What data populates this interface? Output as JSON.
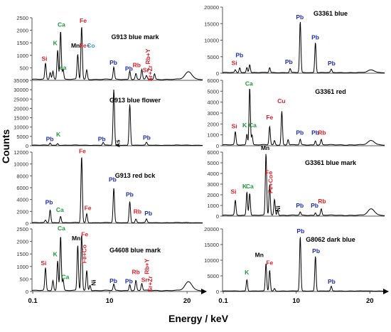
{
  "labels": {
    "y_axis": "Counts",
    "x_axis": "Energy / keV"
  },
  "colors": {
    "red": "#e0202a",
    "green": "#1e9a3a",
    "blue": "#1f2fb0",
    "cyan": "#1aa0d8",
    "black": "#000000",
    "line": "#000000",
    "axis": "#555555"
  },
  "chart_data": [
    {
      "type": "line",
      "title": "G913  blue mark",
      "ylim": [
        0,
        2500
      ],
      "yticks": [
        "0",
        "500",
        "1000",
        "1500",
        "2000",
        "2500"
      ],
      "xlim": [
        0,
        22
      ],
      "xticks": [],
      "series": [
        {
          "baseline": 40,
          "peaks": [
            {
              "x": 1.74,
              "y": 640
            },
            {
              "x": 2.35,
              "y": 280
            },
            {
              "x": 2.7,
              "y": 330
            },
            {
              "x": 3.31,
              "y": 1180
            },
            {
              "x": 3.69,
              "y": 1950
            },
            {
              "x": 4.01,
              "y": 400
            },
            {
              "x": 5.9,
              "y": 1000
            },
            {
              "x": 6.4,
              "y": 2120
            },
            {
              "x": 7.06,
              "y": 380
            },
            {
              "x": 10.55,
              "y": 480
            },
            {
              "x": 12.61,
              "y": 350
            },
            {
              "x": 13.4,
              "y": 230
            },
            {
              "x": 14.16,
              "y": 400
            },
            {
              "x": 14.76,
              "y": 140
            },
            {
              "x": 15.8,
              "y": 220
            },
            {
              "x": 20.2,
              "y": 300
            }
          ]
        }
      ],
      "annotations": [
        {
          "text": "Si",
          "color": "red",
          "x": 1.6,
          "y": 780
        },
        {
          "text": "K",
          "color": "green",
          "x": 3.0,
          "y": 1400
        },
        {
          "text": "Ca",
          "color": "green",
          "x": 3.8,
          "y": 2150
        },
        {
          "text": "ca",
          "color": "green",
          "x": 4.0,
          "y": 420
        },
        {
          "text": "Mn",
          "color": "black",
          "x": 5.6,
          "y": 1300
        },
        {
          "text": "Fe",
          "color": "red",
          "x": 6.6,
          "y": 2300
        },
        {
          "text": "Fe+",
          "color": "red",
          "x": 6.8,
          "y": 1300
        },
        {
          "text": "Co",
          "color": "cyan",
          "x": 7.6,
          "y": 1300
        },
        {
          "text": "Pb",
          "color": "blue",
          "x": 10.5,
          "y": 620
        },
        {
          "text": "Rb",
          "color": "red",
          "x": 13.5,
          "y": 520
        },
        {
          "text": "Sr",
          "color": "red",
          "x": 14.7,
          "y": 330
        },
        {
          "text": "Pb",
          "color": "blue",
          "x": 12.5,
          "y": 380
        },
        {
          "text": "Rb+Y",
          "color": "red",
          "x": 15.2,
          "y": 950
        },
        {
          "text": "Sr+Zr",
          "color": "red",
          "x": 15.5,
          "y": 280
        }
      ]
    },
    {
      "type": "line",
      "title": "G913  blue flower",
      "ylim": [
        0,
        35000
      ],
      "yticks": [
        "0",
        "5000",
        "10000",
        "15000",
        "20000",
        "25000",
        "30000",
        "35000"
      ],
      "xlim": [
        0,
        22
      ],
      "xticks": [],
      "series": [
        {
          "baseline": 300,
          "peaks": [
            {
              "x": 2.34,
              "y": 1200
            },
            {
              "x": 3.31,
              "y": 900
            },
            {
              "x": 9.18,
              "y": 1500
            },
            {
              "x": 10.55,
              "y": 29000
            },
            {
              "x": 10.54,
              "y": 800
            },
            {
              "x": 12.61,
              "y": 22000
            },
            {
              "x": 14.76,
              "y": 1500
            }
          ]
        }
      ],
      "annotations": [
        {
          "text": "Pb",
          "color": "blue",
          "x": 2.3,
          "y": 2500
        },
        {
          "text": "K",
          "color": "green",
          "x": 3.4,
          "y": 5000
        },
        {
          "text": "Pb",
          "color": "blue",
          "x": 9.0,
          "y": 2500
        },
        {
          "text": "As",
          "color": "black",
          "x": 11.3,
          "y": 1200
        },
        {
          "text": "Pb",
          "color": "blue",
          "x": 14.8,
          "y": 3300
        }
      ]
    },
    {
      "type": "line",
      "title": "G913  red bck",
      "ylim": [
        0,
        12000
      ],
      "yticks": [
        "0",
        "2000",
        "4000",
        "6000",
        "8000",
        "10000",
        "12000"
      ],
      "xlim": [
        0,
        22
      ],
      "xticks": [],
      "series": [
        {
          "baseline": 100,
          "peaks": [
            {
              "x": 1.74,
              "y": 400
            },
            {
              "x": 2.34,
              "y": 2200
            },
            {
              "x": 3.69,
              "y": 1100
            },
            {
              "x": 6.4,
              "y": 11200
            },
            {
              "x": 7.06,
              "y": 1500
            },
            {
              "x": 10.55,
              "y": 5800
            },
            {
              "x": 12.61,
              "y": 3600
            },
            {
              "x": 13.4,
              "y": 600
            },
            {
              "x": 14.76,
              "y": 600
            }
          ]
        }
      ],
      "annotations": [
        {
          "text": "Pb",
          "color": "blue",
          "x": 2.2,
          "y": 3200
        },
        {
          "text": "Ca",
          "color": "green",
          "x": 3.6,
          "y": 1900
        },
        {
          "text": "Fe",
          "color": "red",
          "x": 6.5,
          "y": 11800
        },
        {
          "text": "Fe",
          "color": "red",
          "x": 7.2,
          "y": 2200
        },
        {
          "text": "Pb",
          "color": "blue",
          "x": 10.4,
          "y": 7000
        },
        {
          "text": "Pb",
          "color": "blue",
          "x": 12.6,
          "y": 4500
        },
        {
          "text": "Rb",
          "color": "red",
          "x": 13.6,
          "y": 1600
        },
        {
          "text": "Pb",
          "color": "blue",
          "x": 15.0,
          "y": 1300
        }
      ]
    },
    {
      "type": "line",
      "title": "G4608  blue mark",
      "ylim": [
        0,
        2500
      ],
      "yticks": [
        "0",
        "500",
        "1000",
        "1500",
        "2000",
        "2500"
      ],
      "xlim": [
        0,
        22
      ],
      "xticks": [
        "0.1",
        "10",
        "20"
      ],
      "series": [
        {
          "baseline": 40,
          "peaks": [
            {
              "x": 1.74,
              "y": 900
            },
            {
              "x": 2.7,
              "y": 400
            },
            {
              "x": 3.31,
              "y": 1200
            },
            {
              "x": 3.69,
              "y": 2200
            },
            {
              "x": 4.01,
              "y": 450
            },
            {
              "x": 5.9,
              "y": 1800
            },
            {
              "x": 6.4,
              "y": 2250
            },
            {
              "x": 7.06,
              "y": 800
            },
            {
              "x": 7.48,
              "y": 220
            },
            {
              "x": 10.55,
              "y": 250
            },
            {
              "x": 12.61,
              "y": 250
            },
            {
              "x": 13.4,
              "y": 400
            },
            {
              "x": 14.16,
              "y": 280
            },
            {
              "x": 20.2,
              "y": 350
            }
          ]
        }
      ],
      "annotations": [
        {
          "text": "Si",
          "color": "red",
          "x": 1.5,
          "y": 1050
        },
        {
          "text": "K",
          "color": "green",
          "x": 3.0,
          "y": 1400
        },
        {
          "text": "Ca",
          "color": "green",
          "x": 3.8,
          "y": 2450
        },
        {
          "text": "Ca",
          "color": "green",
          "x": 4.3,
          "y": 500
        },
        {
          "text": "Mn",
          "color": "black",
          "x": 5.7,
          "y": 2050
        },
        {
          "text": "Fe",
          "color": "red",
          "x": 6.8,
          "y": 2200
        },
        {
          "text": "Fe+Co",
          "color": "red",
          "x": 7.0,
          "y": 1500
        },
        {
          "text": "Ni",
          "color": "black",
          "x": 8.2,
          "y": 350
        },
        {
          "text": "Pb",
          "color": "blue",
          "x": 10.5,
          "y": 340
        },
        {
          "text": "Rb",
          "color": "red",
          "x": 13.4,
          "y": 700
        },
        {
          "text": "Sr",
          "color": "red",
          "x": 14.5,
          "y": 380
        },
        {
          "text": "Rb+Y",
          "color": "red",
          "x": 15.1,
          "y": 1000
        },
        {
          "text": "Sr+Zr",
          "color": "red",
          "x": 15.5,
          "y": 300
        },
        {
          "text": "Pb",
          "color": "blue",
          "x": 12.5,
          "y": 330
        }
      ]
    },
    {
      "type": "line",
      "title": "G3361  blue",
      "ylim": [
        0,
        20000
      ],
      "yticks": [
        "0",
        "5000",
        "10000",
        "15000",
        "20000"
      ],
      "xlim": [
        0,
        22
      ],
      "xticks": [],
      "series": [
        {
          "baseline": 200,
          "peaks": [
            {
              "x": 1.74,
              "y": 800
            },
            {
              "x": 2.34,
              "y": 1500
            },
            {
              "x": 3.31,
              "y": 1600
            },
            {
              "x": 3.69,
              "y": 2500
            },
            {
              "x": 6.4,
              "y": 1500
            },
            {
              "x": 9.18,
              "y": 1200
            },
            {
              "x": 10.55,
              "y": 15500
            },
            {
              "x": 12.61,
              "y": 9200
            },
            {
              "x": 14.76,
              "y": 1000
            },
            {
              "x": 20.2,
              "y": 800
            }
          ]
        }
      ],
      "annotations": [
        {
          "text": "Si",
          "color": "red",
          "x": 1.6,
          "y": 2500
        },
        {
          "text": "Pb",
          "color": "blue",
          "x": 2.3,
          "y": 4800
        },
        {
          "text": "Pb",
          "color": "blue",
          "x": 9.0,
          "y": 2800
        },
        {
          "text": "Pb",
          "color": "blue",
          "x": 10.5,
          "y": 16300
        },
        {
          "text": "Pb",
          "color": "blue",
          "x": 12.6,
          "y": 10200
        },
        {
          "text": "Pb",
          "color": "blue",
          "x": 14.8,
          "y": 2400
        }
      ]
    },
    {
      "type": "line",
      "title": "G3361  red",
      "ylim": [
        0,
        6000
      ],
      "yticks": [
        "0",
        "1000",
        "2000",
        "3000",
        "4000",
        "5000",
        "6000"
      ],
      "xlim": [
        0,
        22
      ],
      "xticks": [],
      "series": [
        {
          "baseline": 80,
          "peaks": [
            {
              "x": 1.74,
              "y": 1200
            },
            {
              "x": 3.31,
              "y": 1000
            },
            {
              "x": 3.69,
              "y": 5300
            },
            {
              "x": 4.01,
              "y": 900
            },
            {
              "x": 6.4,
              "y": 1700
            },
            {
              "x": 7.06,
              "y": 400
            },
            {
              "x": 8.05,
              "y": 3100
            },
            {
              "x": 8.9,
              "y": 500
            },
            {
              "x": 10.55,
              "y": 500
            },
            {
              "x": 12.61,
              "y": 400
            },
            {
              "x": 13.4,
              "y": 500
            },
            {
              "x": 20.2,
              "y": 400
            }
          ]
        }
      ],
      "annotations": [
        {
          "text": "Si",
          "color": "red",
          "x": 1.6,
          "y": 1600
        },
        {
          "text": "K",
          "color": "green",
          "x": 3.0,
          "y": 1700
        },
        {
          "text": "Ca",
          "color": "green",
          "x": 3.6,
          "y": 5500
        },
        {
          "text": "Ca",
          "color": "green",
          "x": 4.1,
          "y": 1700
        },
        {
          "text": "Fe",
          "color": "red",
          "x": 6.4,
          "y": 2400
        },
        {
          "text": "Cu",
          "color": "red",
          "x": 8.0,
          "y": 3900
        },
        {
          "text": "Pb",
          "color": "blue",
          "x": 10.5,
          "y": 1000
        },
        {
          "text": "Pb",
          "color": "blue",
          "x": 12.6,
          "y": 1000
        },
        {
          "text": "Rb",
          "color": "red",
          "x": 13.5,
          "y": 1000
        }
      ]
    },
    {
      "type": "line",
      "title": "G3361  blue mark",
      "ylim": [
        0,
        6000
      ],
      "yticks": [
        "0",
        "1000",
        "2000",
        "3000",
        "4000",
        "5000",
        "6000"
      ],
      "xlim": [
        0,
        22
      ],
      "xticks": [],
      "series": [
        {
          "baseline": 80,
          "peaks": [
            {
              "x": 1.74,
              "y": 1400
            },
            {
              "x": 3.31,
              "y": 2200
            },
            {
              "x": 3.69,
              "y": 2100
            },
            {
              "x": 5.9,
              "y": 5800
            },
            {
              "x": 6.4,
              "y": 2900
            },
            {
              "x": 7.06,
              "y": 1500
            },
            {
              "x": 7.48,
              "y": 500
            },
            {
              "x": 10.55,
              "y": 300
            },
            {
              "x": 12.61,
              "y": 250
            },
            {
              "x": 13.4,
              "y": 600
            },
            {
              "x": 20.2,
              "y": 600
            }
          ]
        }
      ],
      "annotations": [
        {
          "text": "Si",
          "color": "red",
          "x": 1.5,
          "y": 2100
        },
        {
          "text": "K",
          "color": "green",
          "x": 3.0,
          "y": 2600
        },
        {
          "text": "Ca",
          "color": "green",
          "x": 3.7,
          "y": 2600
        },
        {
          "text": "Mn",
          "color": "black",
          "x": 5.8,
          "y": 6200
        },
        {
          "text": "Fe",
          "color": "red",
          "x": 6.3,
          "y": 3900
        },
        {
          "text": "Fe+Co",
          "color": "red",
          "x": 6.8,
          "y": 3000
        },
        {
          "text": "Ni",
          "color": "black",
          "x": 7.8,
          "y": 700
        },
        {
          "text": "Pb",
          "color": "blue",
          "x": 10.5,
          "y": 800
        },
        {
          "text": "Pb",
          "color": "blue",
          "x": 12.5,
          "y": 800
        },
        {
          "text": "Rb",
          "color": "red",
          "x": 13.5,
          "y": 1200
        }
      ]
    },
    {
      "type": "line",
      "title": "G8062  dark blue",
      "ylim": [
        0,
        20000
      ],
      "yticks": [
        "0",
        "5000",
        "10000",
        "15000",
        "20000"
      ],
      "xlim": [
        0,
        22
      ],
      "xticks": [
        "0.1",
        "10",
        "20"
      ],
      "series": [
        {
          "baseline": 150,
          "peaks": [
            {
              "x": 3.31,
              "y": 3700
            },
            {
              "x": 5.9,
              "y": 8800
            },
            {
              "x": 6.4,
              "y": 6700
            },
            {
              "x": 7.06,
              "y": 800
            },
            {
              "x": 10.55,
              "y": 17500
            },
            {
              "x": 12.61,
              "y": 11300
            },
            {
              "x": 14.76,
              "y": 1500
            }
          ]
        }
      ],
      "annotations": [
        {
          "text": "Mn",
          "color": "black",
          "x": 5.0,
          "y": 11000
        },
        {
          "text": "Fe",
          "color": "red",
          "x": 6.4,
          "y": 8500
        },
        {
          "text": "K",
          "color": "green",
          "x": 3.3,
          "y": 5500
        },
        {
          "text": "Pb",
          "color": "blue",
          "x": 10.6,
          "y": 18600
        },
        {
          "text": "Pb",
          "color": "blue",
          "x": 12.7,
          "y": 12300
        },
        {
          "text": "Pb",
          "color": "blue",
          "x": 14.8,
          "y": 2500
        }
      ]
    }
  ]
}
